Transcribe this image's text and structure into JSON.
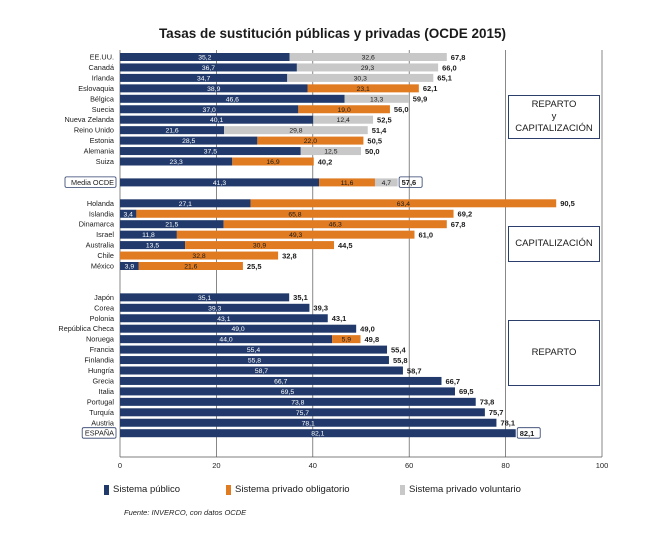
{
  "chart_data": {
    "type": "bar",
    "title": "Tasas de sustitución públicas y privadas (OCDE 2015)",
    "xlim": [
      0,
      100
    ],
    "xticks": [
      0,
      20,
      40,
      60,
      80,
      100
    ],
    "series": [
      {
        "name": "Sistema público",
        "color": "#213a6b"
      },
      {
        "name": "Sistema privado obligatorio",
        "color": "#e07b22"
      },
      {
        "name": "Sistema privado voluntario",
        "color": "#c8c8c8"
      }
    ],
    "rows": [
      {
        "country": "EE.UU.",
        "values": [
          35.2,
          0,
          32.6
        ],
        "total": "67,8",
        "labels": [
          "35,2",
          "",
          "32,6"
        ]
      },
      {
        "country": "Canadá",
        "values": [
          36.7,
          0,
          29.3
        ],
        "total": "66,0",
        "labels": [
          "36,7",
          "",
          "29,3"
        ]
      },
      {
        "country": "Irlanda",
        "values": [
          34.7,
          0,
          30.3
        ],
        "total": "65,1",
        "labels": [
          "34,7",
          "",
          "30,3"
        ]
      },
      {
        "country": "Eslovaquia",
        "values": [
          38.9,
          23.1,
          0
        ],
        "total": "62,1",
        "labels": [
          "38,9",
          "23,1",
          ""
        ]
      },
      {
        "country": "Bélgica",
        "values": [
          46.6,
          0,
          13.3
        ],
        "total": "59,9",
        "labels": [
          "46,6",
          "",
          "13,3"
        ]
      },
      {
        "country": "Suecia",
        "values": [
          37.0,
          19.0,
          0
        ],
        "total": "56,0",
        "labels": [
          "37,0",
          "19,0",
          ""
        ]
      },
      {
        "country": "Nueva Zelanda",
        "values": [
          40.1,
          0,
          12.4
        ],
        "total": "52,5",
        "labels": [
          "40,1",
          "",
          "12,4"
        ]
      },
      {
        "country": "Reino Unido",
        "values": [
          21.6,
          0,
          29.8
        ],
        "total": "51,4",
        "labels": [
          "21,6",
          "",
          "29,8"
        ]
      },
      {
        "country": "Estonia",
        "values": [
          28.5,
          22.0,
          0
        ],
        "total": "50,5",
        "labels": [
          "28,5",
          "22,0",
          ""
        ]
      },
      {
        "country": "Alemania",
        "values": [
          37.5,
          0,
          12.5
        ],
        "total": "50,0",
        "labels": [
          "37,5",
          "",
          "12,5"
        ]
      },
      {
        "country": "Suiza",
        "values": [
          23.3,
          16.9,
          0
        ],
        "total": "40,2",
        "labels": [
          "23,3",
          "16,9",
          ""
        ]
      },
      {
        "spacer": true
      },
      {
        "country": "Media OCDE",
        "values": [
          41.3,
          11.6,
          4.7
        ],
        "total": "57,6",
        "labels": [
          "41,3",
          "11,6",
          "4,7"
        ],
        "boxed": true
      },
      {
        "spacer": true
      },
      {
        "country": "Holanda",
        "values": [
          27.1,
          63.4,
          0
        ],
        "total": "90,5",
        "labels": [
          "27,1",
          "63,4",
          ""
        ]
      },
      {
        "country": "Islandia",
        "values": [
          3.4,
          65.8,
          0
        ],
        "total": "69,2",
        "labels": [
          "3,4",
          "65,8",
          ""
        ]
      },
      {
        "country": "Dinamarca",
        "values": [
          21.5,
          46.3,
          0
        ],
        "total": "67,8",
        "labels": [
          "21,5",
          "46,3",
          ""
        ]
      },
      {
        "country": "Israel",
        "values": [
          11.8,
          49.3,
          0
        ],
        "total": "61,0",
        "labels": [
          "11,8",
          "49,3",
          ""
        ]
      },
      {
        "country": "Australia",
        "values": [
          13.5,
          30.9,
          0
        ],
        "total": "44,5",
        "labels": [
          "13,5",
          "30,9",
          ""
        ]
      },
      {
        "country": "Chile",
        "values": [
          0,
          32.8,
          0
        ],
        "total": "32,8",
        "labels": [
          "",
          "32,8",
          ""
        ]
      },
      {
        "country": "México",
        "values": [
          3.9,
          21.6,
          0
        ],
        "total": "25,5",
        "labels": [
          "3,9",
          "21,6",
          ""
        ]
      },
      {
        "spacer": true
      },
      {
        "spacer": true
      },
      {
        "country": "Japón",
        "values": [
          35.1,
          0,
          0
        ],
        "total": "35,1",
        "labels": [
          "35,1",
          "",
          ""
        ]
      },
      {
        "country": "Corea",
        "values": [
          39.3,
          0,
          0
        ],
        "total": "39,3",
        "labels": [
          "39,3",
          "",
          ""
        ]
      },
      {
        "country": "Polonia",
        "values": [
          43.1,
          0,
          0
        ],
        "total": "43,1",
        "labels": [
          "43,1",
          "",
          ""
        ]
      },
      {
        "country": "República Checa",
        "values": [
          49.0,
          0,
          0
        ],
        "total": "49,0",
        "labels": [
          "49,0",
          "",
          ""
        ]
      },
      {
        "country": "Noruega",
        "values": [
          44.0,
          5.9,
          0
        ],
        "total": "49,8",
        "labels": [
          "44,0",
          "5,9",
          ""
        ]
      },
      {
        "country": "Francia",
        "values": [
          55.4,
          0,
          0
        ],
        "total": "55,4",
        "labels": [
          "55,4",
          "",
          ""
        ]
      },
      {
        "country": "Finlandia",
        "values": [
          55.8,
          0,
          0
        ],
        "total": "55,8",
        "labels": [
          "55,8",
          "",
          ""
        ]
      },
      {
        "country": "Hungría",
        "values": [
          58.7,
          0,
          0
        ],
        "total": "58,7",
        "labels": [
          "58,7",
          "",
          ""
        ]
      },
      {
        "country": "Grecia",
        "values": [
          66.7,
          0,
          0
        ],
        "total": "66,7",
        "labels": [
          "66,7",
          "",
          ""
        ]
      },
      {
        "country": "Italia",
        "values": [
          69.5,
          0,
          0
        ],
        "total": "69,5",
        "labels": [
          "69,5",
          "",
          ""
        ]
      },
      {
        "country": "Portugal",
        "values": [
          73.8,
          0,
          0
        ],
        "total": "73,8",
        "labels": [
          "73,8",
          "",
          ""
        ]
      },
      {
        "country": "Turquía",
        "values": [
          75.7,
          0,
          0
        ],
        "total": "75,7",
        "labels": [
          "75,7",
          "",
          ""
        ]
      },
      {
        "country": "Austria",
        "values": [
          78.1,
          0,
          0
        ],
        "total": "78,1",
        "labels": [
          "78,1",
          "",
          ""
        ]
      },
      {
        "country": "ESPAÑA",
        "values": [
          82.1,
          0,
          0
        ],
        "total": "82,1",
        "labels": [
          "82,1",
          "",
          ""
        ],
        "boxed": true
      }
    ],
    "groups": [
      {
        "lines": [
          "REPARTO",
          "y",
          "CAPITALIZACIÓN"
        ]
      },
      {
        "lines": [
          "CAPITALIZACIÓN"
        ]
      },
      {
        "lines": [
          "REPARTO"
        ]
      }
    ],
    "source": "Fuente: INVERCO, con datos OCDE"
  }
}
